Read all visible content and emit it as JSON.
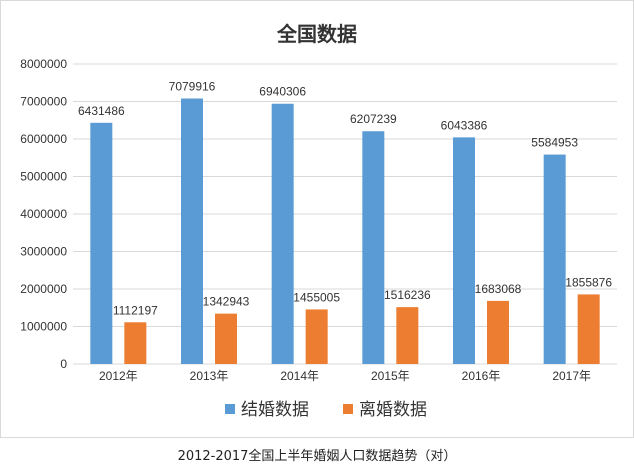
{
  "chart_data": {
    "type": "bar",
    "title": "全国数据",
    "categories": [
      "2012年",
      "2013年",
      "2014年",
      "2015年",
      "2016年",
      "2017年"
    ],
    "series": [
      {
        "name": "结婚数据",
        "color": "#5B9BD5",
        "values": [
          6431486,
          7079916,
          6940306,
          6207239,
          6043386,
          5584953
        ],
        "labels": [
          "6431486",
          "7079916",
          "6940306",
          "6207239",
          "6043386",
          "5584953"
        ]
      },
      {
        "name": "离婚数据",
        "color": "#ED7D31",
        "values": [
          1112197,
          1342943,
          1455005,
          1516236,
          1683068,
          1855876
        ],
        "labels": [
          "1112197",
          "1342943",
          "1455005",
          "1516236",
          "1683068",
          "1855876"
        ]
      }
    ],
    "ylim": [
      0,
      8000000
    ],
    "yticks": [
      "0",
      "1000000",
      "2000000",
      "3000000",
      "4000000",
      "5000000",
      "6000000",
      "7000000",
      "8000000"
    ],
    "grid": true,
    "legend_position": "bottom"
  },
  "caption": "2012-2017全国上半年婚姻人口数据趋势（对）"
}
